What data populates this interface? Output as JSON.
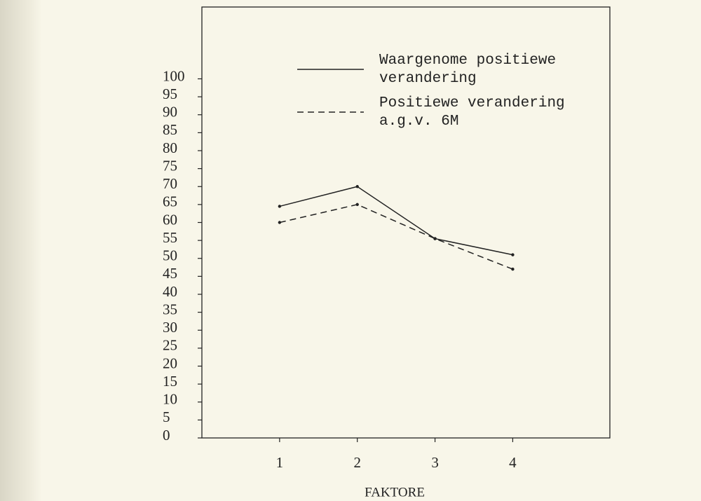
{
  "chart_data": {
    "type": "line",
    "x": [
      1,
      2,
      3,
      4
    ],
    "xlim": [
      0,
      5.25
    ],
    "xticks": [
      1,
      2,
      3,
      4
    ],
    "ylim": [
      0,
      120
    ],
    "yticks": [
      0,
      5,
      10,
      15,
      20,
      25,
      30,
      35,
      40,
      45,
      50,
      55,
      60,
      65,
      70,
      75,
      80,
      85,
      90,
      95,
      100
    ],
    "xlabel": "FAKTORE",
    "legend": "upper center",
    "series": [
      {
        "name": "Waargenome positiewe verandering",
        "color": "#222222",
        "dash": "solid",
        "values": [
          64.5,
          70,
          55.5,
          51
        ]
      },
      {
        "name": "Positiewe verandering a.g.v. 6M",
        "color": "#222222",
        "dash": "dashed",
        "values": [
          60,
          65,
          55.5,
          47
        ]
      }
    ]
  }
}
